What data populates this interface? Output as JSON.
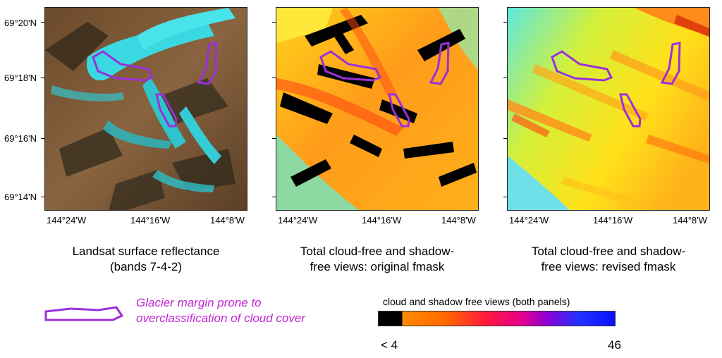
{
  "panels": [
    {
      "caption_line1": "Landsat surface reflectance",
      "caption_line2": "(bands 7-4-2)"
    },
    {
      "caption_line1": "Total cloud-free and shadow-",
      "caption_line2": "free views: original fmask"
    },
    {
      "caption_line1": "Total cloud-free and shadow-",
      "caption_line2": "free views: revised fmask"
    }
  ],
  "y_ticks": [
    "69°20'N",
    "69°18'N",
    "69°16'N",
    "69°14'N"
  ],
  "x_ticks": [
    "144°24'W",
    "144°16'W",
    "144°8'W"
  ],
  "legend": {
    "outline_label": "Glacier margin prone to overclassification of cloud cover",
    "outline_color": "#9b30d9"
  },
  "colorbar": {
    "title": "cloud and shadow free views (both panels)",
    "min_label": "< 4",
    "max_label": "46"
  }
}
